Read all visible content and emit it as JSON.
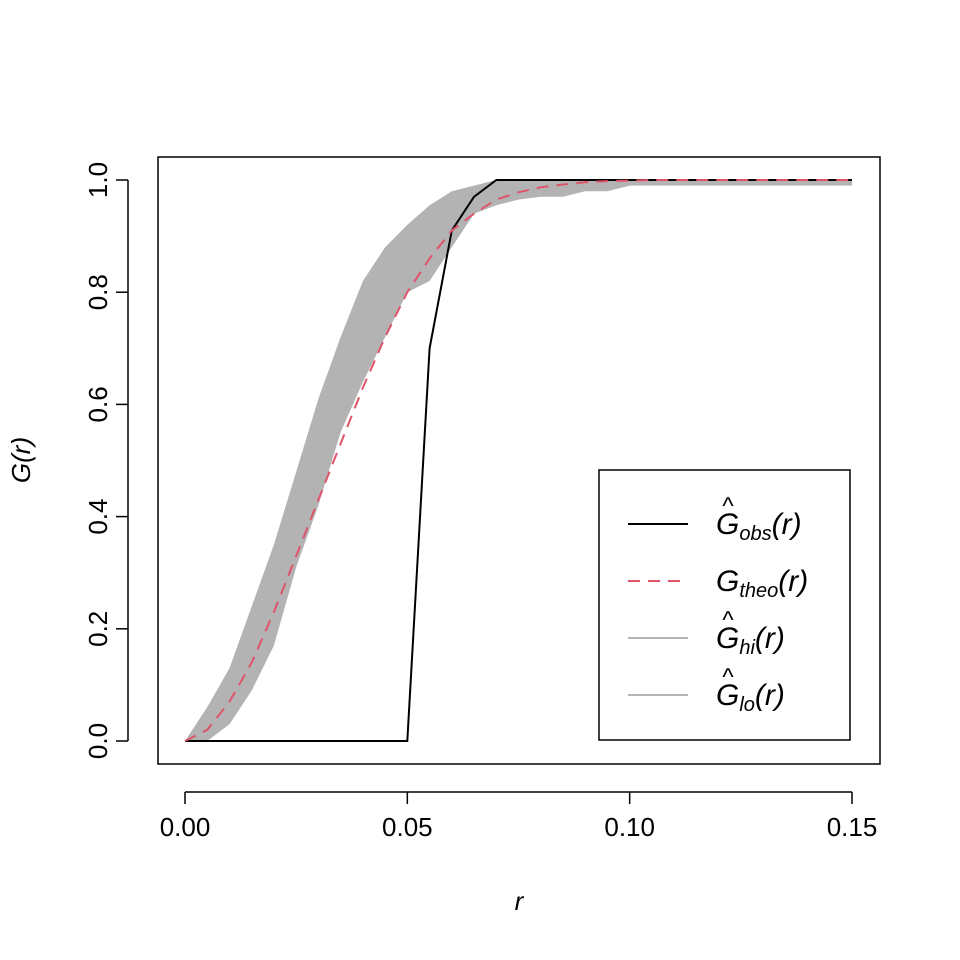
{
  "chart_data": {
    "type": "line",
    "title": "",
    "xlabel": "r",
    "ylabel": "G(r)",
    "xlim": [
      0,
      0.15
    ],
    "ylim": [
      0,
      1
    ],
    "x_ticks": [
      0,
      0.05,
      0.1,
      0.15
    ],
    "x_tick_labels": [
      "0.00",
      "0.05",
      "0.10",
      "0.15"
    ],
    "y_ticks": [
      0,
      0.2,
      0.4,
      0.6,
      0.8,
      1.0
    ],
    "y_tick_labels": [
      "0.0",
      "0.2",
      "0.4",
      "0.6",
      "0.8",
      "1.0"
    ],
    "grid": false,
    "legend_position": "bottom-right",
    "colors": {
      "obs": "#000000",
      "theo": "#DF536B",
      "envelope": "#B3B3B3"
    },
    "x": [
      0,
      0.005,
      0.01,
      0.015,
      0.02,
      0.025,
      0.03,
      0.035,
      0.04,
      0.045,
      0.05,
      0.055,
      0.06,
      0.065,
      0.07,
      0.075,
      0.08,
      0.085,
      0.09,
      0.095,
      0.1,
      0.105,
      0.11,
      0.115,
      0.12,
      0.125,
      0.13,
      0.135,
      0.14,
      0.145,
      0.15
    ],
    "series": [
      {
        "key": "obs",
        "values": [
          0,
          0,
          0,
          0,
          0,
          0,
          0,
          0,
          0,
          0,
          0,
          0.7,
          0.91,
          0.97,
          1,
          1,
          1,
          1,
          1,
          1,
          1,
          1,
          1,
          1,
          1,
          1,
          1,
          1,
          1,
          1,
          1
        ]
      },
      {
        "key": "theo",
        "values": [
          0,
          0.02,
          0.07,
          0.14,
          0.23,
          0.33,
          0.43,
          0.53,
          0.63,
          0.72,
          0.8,
          0.86,
          0.91,
          0.94,
          0.965,
          0.978,
          0.987,
          0.992,
          0.996,
          0.998,
          0.999,
          1,
          1,
          1,
          1,
          1,
          1,
          1,
          1,
          1,
          1
        ]
      },
      {
        "key": "hi",
        "values": [
          0,
          0.06,
          0.13,
          0.24,
          0.35,
          0.48,
          0.61,
          0.72,
          0.82,
          0.88,
          0.92,
          0.955,
          0.98,
          0.99,
          1,
          1,
          1,
          1,
          1,
          1,
          1,
          1,
          1,
          1,
          1,
          1,
          1,
          1,
          1,
          1,
          1
        ]
      },
      {
        "key": "lo",
        "values": [
          0,
          0,
          0.03,
          0.09,
          0.17,
          0.31,
          0.42,
          0.55,
          0.64,
          0.72,
          0.8,
          0.82,
          0.88,
          0.94,
          0.955,
          0.965,
          0.97,
          0.97,
          0.98,
          0.98,
          0.99,
          0.99,
          0.99,
          0.99,
          0.99,
          0.99,
          0.99,
          0.99,
          0.99,
          0.99,
          0.99
        ]
      }
    ],
    "legend": [
      {
        "key": "obs",
        "main": "G",
        "hat": "^",
        "sub": "obs",
        "arg": "(r)"
      },
      {
        "key": "theo",
        "main": "G",
        "hat": "",
        "sub": "theo",
        "arg": "(r)"
      },
      {
        "key": "hi",
        "main": "G",
        "hat": "^",
        "sub": "hi",
        "arg": "(r)"
      },
      {
        "key": "lo",
        "main": "G",
        "hat": "^",
        "sub": "lo",
        "arg": "(r)"
      }
    ]
  }
}
